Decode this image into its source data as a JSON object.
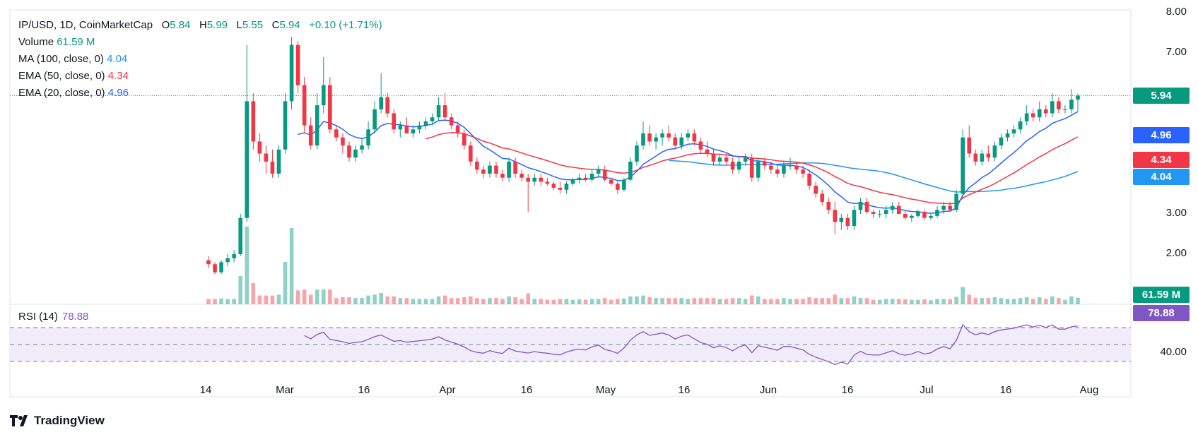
{
  "legend": {
    "symbol": "IP/USD, 1D, CoinMarketCap",
    "o_label": "O",
    "o_val": "5.84",
    "h_label": "H",
    "h_val": "5.99",
    "l_label": "L",
    "l_val": "5.55",
    "c_label": "C",
    "c_val": "5.94",
    "change": "+0.10 (+1.71%)",
    "volume_label": "Volume",
    "volume_val": "61.59 M",
    "ma_label": "MA (100, close, 0)",
    "ma_val": "4.04",
    "ema50_label": "EMA (50, close, 0)",
    "ema50_val": "4.34",
    "ema20_label": "EMA (20, close, 0)",
    "ema20_val": "4.96"
  },
  "rsi": {
    "label": "RSI (14)",
    "value": "78.88"
  },
  "price_axis": [
    "8.00",
    "7.00",
    "2.00",
    "3.00",
    "40.00"
  ],
  "badges": {
    "price": "5.94",
    "ema20": "4.96",
    "ema50": "4.34",
    "ma100": "4.04",
    "volume": "61.59 M",
    "rsi": "78.88"
  },
  "colors": {
    "up": "#089981",
    "down": "#f23645",
    "ema20": "#2962ff",
    "ema50": "#f23645",
    "ma100": "#2196f3",
    "rsi": "#7e57c2",
    "rsi_band": "#f1ecfa"
  },
  "x_labels": [
    "14",
    "Mar",
    "16",
    "Apr",
    "16",
    "May",
    "16",
    "Jun",
    "16",
    "Jul",
    "16",
    "Aug"
  ],
  "branding": "TradingView",
  "chart_data": {
    "type": "candlestick",
    "title": "IP/USD, 1D, CoinMarketCap",
    "ylim": [
      1.0,
      8.0
    ],
    "y_ticks": [
      2,
      3,
      7,
      8
    ],
    "ohlc": [
      [
        1.85,
        1.95,
        1.65,
        1.75
      ],
      [
        1.75,
        1.8,
        1.5,
        1.55
      ],
      [
        1.55,
        1.85,
        1.5,
        1.8
      ],
      [
        1.8,
        2.0,
        1.7,
        1.9
      ],
      [
        1.9,
        2.1,
        1.8,
        2.0
      ],
      [
        2.0,
        3.0,
        1.95,
        2.9
      ],
      [
        2.9,
        7.2,
        2.8,
        5.8
      ],
      [
        5.8,
        6.0,
        4.6,
        4.8
      ],
      [
        4.8,
        5.0,
        4.3,
        4.5
      ],
      [
        4.5,
        4.7,
        4.0,
        4.3
      ],
      [
        4.3,
        4.6,
        3.9,
        4.0
      ],
      [
        4.0,
        4.7,
        3.9,
        4.6
      ],
      [
        4.6,
        6.0,
        4.5,
        5.8
      ],
      [
        5.8,
        7.4,
        5.6,
        7.2
      ],
      [
        7.2,
        7.3,
        6.0,
        6.2
      ],
      [
        6.2,
        6.4,
        5.0,
        5.2
      ],
      [
        5.2,
        5.4,
        4.6,
        4.7
      ],
      [
        4.7,
        6.0,
        4.6,
        5.7
      ],
      [
        5.7,
        6.9,
        5.5,
        6.2
      ],
      [
        6.2,
        6.4,
        5.0,
        5.1
      ],
      [
        5.1,
        5.2,
        4.8,
        4.9
      ],
      [
        4.9,
        5.0,
        4.5,
        4.7
      ],
      [
        4.7,
        4.8,
        4.3,
        4.4
      ],
      [
        4.4,
        4.7,
        4.3,
        4.6
      ],
      [
        4.6,
        4.9,
        4.5,
        4.7
      ],
      [
        4.7,
        5.3,
        4.6,
        5.1
      ],
      [
        5.1,
        5.8,
        5.0,
        5.6
      ],
      [
        5.6,
        6.5,
        5.5,
        5.9
      ],
      [
        5.9,
        6.0,
        5.4,
        5.5
      ],
      [
        5.5,
        5.6,
        5.0,
        5.1
      ],
      [
        5.1,
        5.3,
        4.9,
        5.2
      ],
      [
        5.2,
        5.4,
        5.0,
        5.0
      ],
      [
        5.0,
        5.2,
        4.9,
        5.1
      ],
      [
        5.1,
        5.3,
        5.0,
        5.2
      ],
      [
        5.2,
        5.4,
        5.1,
        5.3
      ],
      [
        5.3,
        5.5,
        5.2,
        5.4
      ],
      [
        5.4,
        5.9,
        5.3,
        5.7
      ],
      [
        5.7,
        6.0,
        5.3,
        5.4
      ],
      [
        5.4,
        5.5,
        5.1,
        5.2
      ],
      [
        5.2,
        5.3,
        4.9,
        5.0
      ],
      [
        5.0,
        5.1,
        4.6,
        4.7
      ],
      [
        4.7,
        4.8,
        4.2,
        4.3
      ],
      [
        4.3,
        4.4,
        4.0,
        4.1
      ],
      [
        4.1,
        4.2,
        3.9,
        4.0
      ],
      [
        4.0,
        4.3,
        3.9,
        4.2
      ],
      [
        4.2,
        4.3,
        3.9,
        4.0
      ],
      [
        4.0,
        4.1,
        3.8,
        3.9
      ],
      [
        3.9,
        4.4,
        3.8,
        4.3
      ],
      [
        4.3,
        4.4,
        3.9,
        4.0
      ],
      [
        4.0,
        4.1,
        3.8,
        3.9
      ],
      [
        3.9,
        4.0,
        3.05,
        3.8
      ],
      [
        3.8,
        4.0,
        3.7,
        3.9
      ],
      [
        3.9,
        4.0,
        3.7,
        3.8
      ],
      [
        3.8,
        3.9,
        3.7,
        3.75
      ],
      [
        3.75,
        3.8,
        3.6,
        3.65
      ],
      [
        3.65,
        3.8,
        3.5,
        3.6
      ],
      [
        3.6,
        3.8,
        3.5,
        3.75
      ],
      [
        3.75,
        3.9,
        3.7,
        3.85
      ],
      [
        3.85,
        4.0,
        3.75,
        3.9
      ],
      [
        3.9,
        4.0,
        3.8,
        3.85
      ],
      [
        3.85,
        4.1,
        3.8,
        4.0
      ],
      [
        4.0,
        4.2,
        3.9,
        4.1
      ],
      [
        4.1,
        4.2,
        3.8,
        3.85
      ],
      [
        3.85,
        3.9,
        3.7,
        3.75
      ],
      [
        3.75,
        3.8,
        3.5,
        3.6
      ],
      [
        3.6,
        3.9,
        3.55,
        3.85
      ],
      [
        3.85,
        4.4,
        3.8,
        4.3
      ],
      [
        4.3,
        4.8,
        4.2,
        4.7
      ],
      [
        4.7,
        5.3,
        4.6,
        5.0
      ],
      [
        5.0,
        5.2,
        4.7,
        4.8
      ],
      [
        4.8,
        5.0,
        4.6,
        4.9
      ],
      [
        4.9,
        5.1,
        4.7,
        5.0
      ],
      [
        5.0,
        5.2,
        4.8,
        4.9
      ],
      [
        4.9,
        5.0,
        4.6,
        4.7
      ],
      [
        4.7,
        5.0,
        4.6,
        4.9
      ],
      [
        4.9,
        5.1,
        4.8,
        5.0
      ],
      [
        5.0,
        5.1,
        4.7,
        4.8
      ],
      [
        4.8,
        4.9,
        4.5,
        4.6
      ],
      [
        4.6,
        4.8,
        4.4,
        4.5
      ],
      [
        4.5,
        4.6,
        4.2,
        4.3
      ],
      [
        4.3,
        4.5,
        4.2,
        4.4
      ],
      [
        4.4,
        4.5,
        4.2,
        4.3
      ],
      [
        4.3,
        4.4,
        4.0,
        4.1
      ],
      [
        4.1,
        4.4,
        4.0,
        4.3
      ],
      [
        4.3,
        4.5,
        4.2,
        4.4
      ],
      [
        4.4,
        4.5,
        3.8,
        3.9
      ],
      [
        3.9,
        4.4,
        3.8,
        4.3
      ],
      [
        4.3,
        4.4,
        4.1,
        4.2
      ],
      [
        4.2,
        4.3,
        4.0,
        4.1
      ],
      [
        4.1,
        4.2,
        3.9,
        4.0
      ],
      [
        4.0,
        4.3,
        3.9,
        4.2
      ],
      [
        4.2,
        4.4,
        4.1,
        4.2
      ],
      [
        4.2,
        4.3,
        4.0,
        4.1
      ],
      [
        4.1,
        4.2,
        3.9,
        4.0
      ],
      [
        4.0,
        4.1,
        3.6,
        3.7
      ],
      [
        3.7,
        3.8,
        3.4,
        3.5
      ],
      [
        3.5,
        3.6,
        3.2,
        3.3
      ],
      [
        3.3,
        3.4,
        3.0,
        3.1
      ],
      [
        3.1,
        3.3,
        2.5,
        2.8
      ],
      [
        2.8,
        3.0,
        2.6,
        2.9
      ],
      [
        2.9,
        3.0,
        2.6,
        2.7
      ],
      [
        2.7,
        3.2,
        2.6,
        3.1
      ],
      [
        3.1,
        3.4,
        3.0,
        3.3
      ],
      [
        3.3,
        3.4,
        3.0,
        3.05
      ],
      [
        3.05,
        3.1,
        2.9,
        3.0
      ],
      [
        3.0,
        3.1,
        2.9,
        3.0
      ],
      [
        3.0,
        3.2,
        2.9,
        3.1
      ],
      [
        3.1,
        3.3,
        3.0,
        3.2
      ],
      [
        3.2,
        3.3,
        3.0,
        3.0
      ],
      [
        3.0,
        3.1,
        2.85,
        2.9
      ],
      [
        2.9,
        3.0,
        2.8,
        2.95
      ],
      [
        2.95,
        3.1,
        2.9,
        3.05
      ],
      [
        3.05,
        3.1,
        2.85,
        2.9
      ],
      [
        2.9,
        3.0,
        2.85,
        2.95
      ],
      [
        2.95,
        3.2,
        2.9,
        3.1
      ],
      [
        3.1,
        3.3,
        3.0,
        3.2
      ],
      [
        3.2,
        3.3,
        3.05,
        3.1
      ],
      [
        3.1,
        3.6,
        3.05,
        3.5
      ],
      [
        3.5,
        5.1,
        3.4,
        4.9
      ],
      [
        4.9,
        5.2,
        4.4,
        4.5
      ],
      [
        4.5,
        4.6,
        4.2,
        4.3
      ],
      [
        4.3,
        4.6,
        4.2,
        4.5
      ],
      [
        4.5,
        4.7,
        4.3,
        4.4
      ],
      [
        4.4,
        4.8,
        4.3,
        4.7
      ],
      [
        4.7,
        5.0,
        4.6,
        4.9
      ],
      [
        4.9,
        5.1,
        4.8,
        5.0
      ],
      [
        5.0,
        5.2,
        4.9,
        5.1
      ],
      [
        5.1,
        5.4,
        5.0,
        5.3
      ],
      [
        5.3,
        5.7,
        5.2,
        5.5
      ],
      [
        5.5,
        5.6,
        5.3,
        5.4
      ],
      [
        5.4,
        5.8,
        5.3,
        5.6
      ],
      [
        5.6,
        5.7,
        5.4,
        5.5
      ],
      [
        5.5,
        6.0,
        5.4,
        5.8
      ],
      [
        5.8,
        5.9,
        5.5,
        5.6
      ],
      [
        5.6,
        5.7,
        5.5,
        5.6
      ],
      [
        5.6,
        6.1,
        5.5,
        5.84
      ],
      [
        5.84,
        5.99,
        5.55,
        5.94
      ]
    ],
    "volume_max_label": "61.59 M",
    "rsi": {
      "ylim": [
        20,
        90
      ],
      "levels": [
        70,
        50,
        30
      ],
      "tick": "40.00"
    }
  }
}
